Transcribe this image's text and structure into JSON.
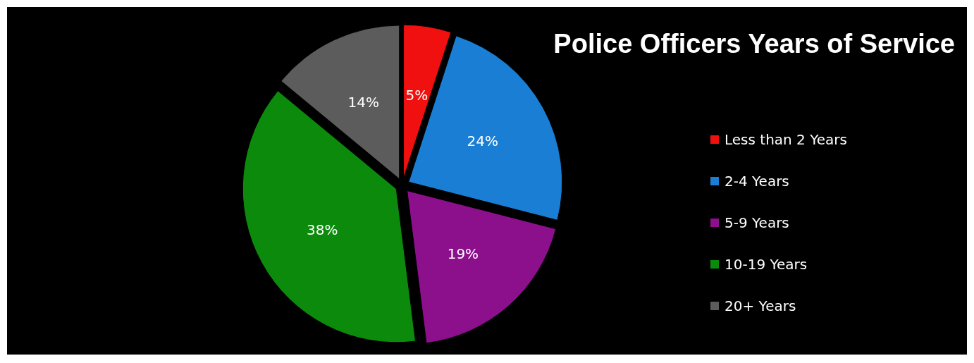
{
  "chart_data": {
    "type": "pie",
    "title": "Police Officers Years of Service",
    "categories": [
      "Less than 2 Years",
      "2-4 Years",
      "5-9 Years",
      "10-19 Years",
      "20+ Years"
    ],
    "values": [
      5,
      24,
      19,
      38,
      14
    ],
    "colors": [
      "#f01010",
      "#1a7fd4",
      "#8c0f8c",
      "#0c8a0c",
      "#5c5c5c"
    ],
    "value_labels": [
      "5%",
      "24%",
      "19%",
      "38%",
      "14%"
    ],
    "legend": "right"
  }
}
